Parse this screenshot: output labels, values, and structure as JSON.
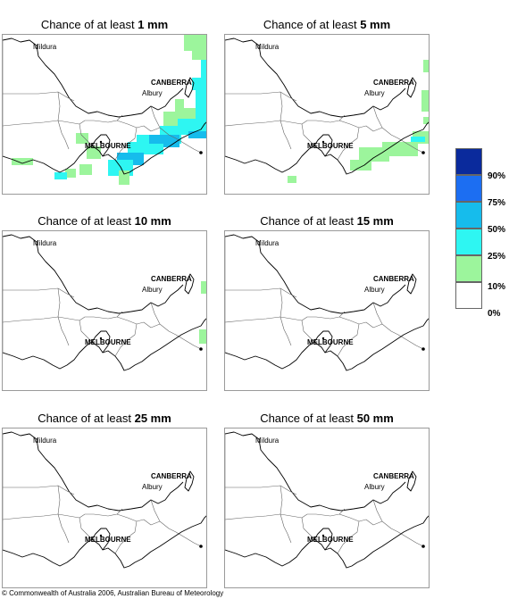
{
  "panels": [
    {
      "prefix": "Chance of at least ",
      "amount": "1 mm",
      "level": 1
    },
    {
      "prefix": "Chance of at least ",
      "amount": "5 mm",
      "level": 5
    },
    {
      "prefix": "Chance of at least ",
      "amount": "10 mm",
      "level": 10
    },
    {
      "prefix": "Chance of at least ",
      "amount": "15 mm",
      "level": 15
    },
    {
      "prefix": "Chance of at least ",
      "amount": "25 mm",
      "level": 25
    },
    {
      "prefix": "Chance of at least ",
      "amount": "50 mm",
      "level": 50
    }
  ],
  "places": {
    "mildura": "Mildura",
    "canberra": "CANBERRA",
    "albury": "Albury",
    "melbourne": "MELBOURNE"
  },
  "legend": {
    "labels": [
      "90%",
      "75%",
      "50%",
      "25%",
      "10%",
      "0%"
    ],
    "colors": [
      "#0a2a9c",
      "#1c6ef2",
      "#16bcec",
      "#2ef6f2",
      "#9cf59c",
      "#ffffff"
    ]
  },
  "footer": {
    "copyright": "© Commonwealth of Australia 2006, Australian Bureau of Meteorology"
  }
}
